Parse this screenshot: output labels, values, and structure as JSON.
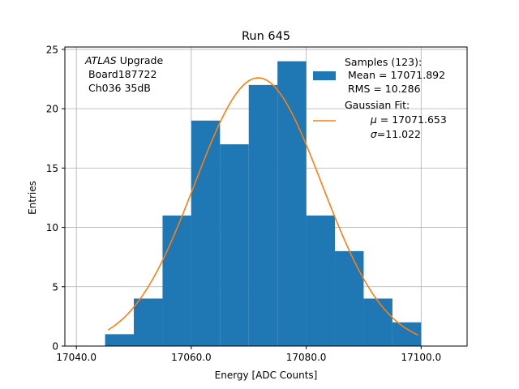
{
  "chart_data": {
    "type": "histogram",
    "title": "Run 645",
    "xlabel": "Energy [ADC Counts]",
    "ylabel": "Entries",
    "xlim": [
      17038.0,
      17108.0
    ],
    "ylim": [
      0,
      25.2
    ],
    "grid": true,
    "xticks": [
      17040.0,
      17060.0,
      17080.0,
      17100.0
    ],
    "xtick_labels": [
      "17040.0",
      "17060.0",
      "17080.0",
      "17100.0"
    ],
    "yticks": [
      0,
      5,
      10,
      15,
      20,
      25
    ],
    "ytick_labels": [
      "0",
      "5",
      "10",
      "15",
      "20",
      "25"
    ],
    "bins": [
      {
        "x0": 17045,
        "x1": 17050,
        "count": 1
      },
      {
        "x0": 17050,
        "x1": 17055,
        "count": 4
      },
      {
        "x0": 17055,
        "x1": 17060,
        "count": 11
      },
      {
        "x0": 17060,
        "x1": 17065,
        "count": 19
      },
      {
        "x0": 17065,
        "x1": 17070,
        "count": 17
      },
      {
        "x0": 17070,
        "x1": 17075,
        "count": 22
      },
      {
        "x0": 17075,
        "x1": 17080,
        "count": 24
      },
      {
        "x0": 17080,
        "x1": 17085,
        "count": 11
      },
      {
        "x0": 17085,
        "x1": 17090,
        "count": 8
      },
      {
        "x0": 17090,
        "x1": 17095,
        "count": 4
      },
      {
        "x0": 17095,
        "x1": 17100,
        "count": 2
      }
    ],
    "fit": {
      "mu": 17071.653,
      "sigma": 11.022,
      "amplitude": 22.6,
      "x_range": [
        17045.5,
        17099.5
      ]
    },
    "annotation": {
      "line1_italic": "ATLAS",
      "line1_rest": " Upgrade",
      "line2": " Board187722",
      "line3": " Ch036 35dB"
    },
    "legend": {
      "placement": "top-right",
      "samples_line1": "Samples (123):",
      "samples_line2": " Mean = 17071.892",
      "samples_line3": " RMS = 10.286",
      "fit_line1": "Gaussian Fit:",
      "fit_mu_symbol": "μ",
      "fit_mu_value": " = 17071.653",
      "fit_sigma_symbol": "σ",
      "fit_sigma_value": "=11.022"
    },
    "colors": {
      "bars": "#1f77b4",
      "fit_line": "#ff7f0e",
      "grid": "#b0b0b0"
    }
  }
}
